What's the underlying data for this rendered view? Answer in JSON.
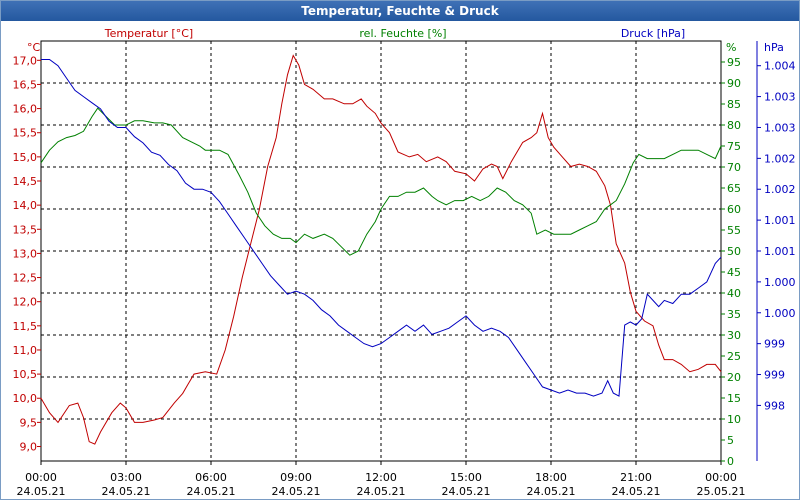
{
  "chart_data": {
    "type": "line",
    "title": "Temperatur, Feuchte & Druck",
    "x_tick_times": [
      "00:00",
      "03:00",
      "06:00",
      "09:00",
      "12:00",
      "15:00",
      "18:00",
      "21:00",
      "00:00"
    ],
    "x_tick_dates": [
      "24.05.21",
      "24.05.21",
      "24.05.21",
      "24.05.21",
      "24.05.21",
      "24.05.21",
      "24.05.21",
      "24.05.21",
      "25.05.21"
    ],
    "x_range_hours": [
      0,
      24
    ],
    "axes": {
      "temperature": {
        "unit_label": "°C",
        "label": "Temperatur [°C]",
        "range": [
          8.7,
          17.4
        ],
        "ticks": [
          "17,0",
          "16,5",
          "16,0",
          "15,5",
          "15,0",
          "14,5",
          "14,0",
          "13,5",
          "13,0",
          "12,5",
          "12,0",
          "11,5",
          "11,0",
          "10,5",
          "10,0",
          "9,5",
          "9,0"
        ],
        "tick_values": [
          17.0,
          16.5,
          16.0,
          15.5,
          15.0,
          14.5,
          14.0,
          13.5,
          13.0,
          12.5,
          12.0,
          11.5,
          11.0,
          10.5,
          10.0,
          9.5,
          9.0
        ],
        "color": "#c00000"
      },
      "humidity": {
        "unit_label": "%",
        "label": "rel. Feuchte [%]",
        "range": [
          0,
          100
        ],
        "ticks": [
          "95",
          "90",
          "85",
          "80",
          "75",
          "70",
          "65",
          "60",
          "55",
          "50",
          "45",
          "40",
          "35",
          "30",
          "25",
          "20",
          "15",
          "10",
          "5",
          "0"
        ],
        "tick_values": [
          95,
          90,
          85,
          80,
          75,
          70,
          65,
          60,
          55,
          50,
          45,
          40,
          35,
          30,
          25,
          20,
          15,
          10,
          5,
          0
        ],
        "color": "#008000"
      },
      "pressure": {
        "unit_label": "hPa",
        "label": "Druck [hPa]",
        "range": [
          997.6,
          1004.4
        ],
        "ticks": [
          "1.004",
          "1.003",
          "1.003",
          "1.002",
          "1.002",
          "1.001",
          "1.001",
          "1.000",
          "1.000",
          "999",
          "999",
          "998"
        ],
        "tick_values": [
          1004.0,
          1003.5,
          1003.0,
          1002.5,
          1002.0,
          1001.5,
          1001.0,
          1000.5,
          1000.0,
          999.5,
          999.0,
          998.5
        ],
        "color": "#0000c0"
      }
    },
    "series": [
      {
        "name": "Temperatur [°C]",
        "axis": "temperature",
        "color": "#c00000",
        "points": [
          [
            0.0,
            10.0
          ],
          [
            0.3,
            9.7
          ],
          [
            0.6,
            9.5
          ],
          [
            1.0,
            9.85
          ],
          [
            1.3,
            9.9
          ],
          [
            1.5,
            9.6
          ],
          [
            1.7,
            9.1
          ],
          [
            1.9,
            9.05
          ],
          [
            2.1,
            9.3
          ],
          [
            2.5,
            9.7
          ],
          [
            2.8,
            9.9
          ],
          [
            3.0,
            9.8
          ],
          [
            3.3,
            9.5
          ],
          [
            3.6,
            9.5
          ],
          [
            4.0,
            9.55
          ],
          [
            4.3,
            9.6
          ],
          [
            4.7,
            9.9
          ],
          [
            5.0,
            10.1
          ],
          [
            5.2,
            10.3
          ],
          [
            5.4,
            10.5
          ],
          [
            5.8,
            10.55
          ],
          [
            6.2,
            10.5
          ],
          [
            6.5,
            11.0
          ],
          [
            6.8,
            11.7
          ],
          [
            7.1,
            12.5
          ],
          [
            7.4,
            13.2
          ],
          [
            7.7,
            13.9
          ],
          [
            8.0,
            14.8
          ],
          [
            8.3,
            15.4
          ],
          [
            8.5,
            16.1
          ],
          [
            8.7,
            16.7
          ],
          [
            8.9,
            17.1
          ],
          [
            9.1,
            16.9
          ],
          [
            9.3,
            16.5
          ],
          [
            9.6,
            16.4
          ],
          [
            10.0,
            16.2
          ],
          [
            10.3,
            16.2
          ],
          [
            10.7,
            16.1
          ],
          [
            11.0,
            16.1
          ],
          [
            11.3,
            16.2
          ],
          [
            11.5,
            16.05
          ],
          [
            11.8,
            15.9
          ],
          [
            12.0,
            15.7
          ],
          [
            12.3,
            15.5
          ],
          [
            12.6,
            15.1
          ],
          [
            13.0,
            15.0
          ],
          [
            13.3,
            15.05
          ],
          [
            13.6,
            14.9
          ],
          [
            14.0,
            15.0
          ],
          [
            14.3,
            14.9
          ],
          [
            14.6,
            14.7
          ],
          [
            15.0,
            14.65
          ],
          [
            15.3,
            14.5
          ],
          [
            15.6,
            14.75
          ],
          [
            15.9,
            14.85
          ],
          [
            16.1,
            14.8
          ],
          [
            16.3,
            14.55
          ],
          [
            16.6,
            14.9
          ],
          [
            17.0,
            15.3
          ],
          [
            17.3,
            15.4
          ],
          [
            17.5,
            15.5
          ],
          [
            17.7,
            15.9
          ],
          [
            17.9,
            15.4
          ],
          [
            18.1,
            15.2
          ],
          [
            18.4,
            15.0
          ],
          [
            18.7,
            14.8
          ],
          [
            19.0,
            14.85
          ],
          [
            19.3,
            14.8
          ],
          [
            19.6,
            14.7
          ],
          [
            19.9,
            14.4
          ],
          [
            20.1,
            14.0
          ],
          [
            20.3,
            13.2
          ],
          [
            20.6,
            12.8
          ],
          [
            20.8,
            12.2
          ],
          [
            21.0,
            11.8
          ],
          [
            21.3,
            11.6
          ],
          [
            21.6,
            11.5
          ],
          [
            21.8,
            11.1
          ],
          [
            22.0,
            10.8
          ],
          [
            22.3,
            10.8
          ],
          [
            22.6,
            10.7
          ],
          [
            22.9,
            10.55
          ],
          [
            23.2,
            10.6
          ],
          [
            23.5,
            10.7
          ],
          [
            23.8,
            10.7
          ],
          [
            24.0,
            10.55
          ]
        ]
      },
      {
        "name": "rel. Feuchte [%]",
        "axis": "humidity",
        "color": "#008000",
        "points": [
          [
            0.0,
            71
          ],
          [
            0.3,
            74
          ],
          [
            0.6,
            76
          ],
          [
            0.9,
            77
          ],
          [
            1.2,
            77.5
          ],
          [
            1.5,
            78.5
          ],
          [
            1.8,
            82
          ],
          [
            2.0,
            84
          ],
          [
            2.3,
            82
          ],
          [
            2.6,
            80
          ],
          [
            3.0,
            80
          ],
          [
            3.3,
            81
          ],
          [
            3.6,
            81
          ],
          [
            4.0,
            80.5
          ],
          [
            4.3,
            80.5
          ],
          [
            4.6,
            80
          ],
          [
            5.0,
            77
          ],
          [
            5.3,
            76
          ],
          [
            5.6,
            75
          ],
          [
            5.8,
            74
          ],
          [
            6.0,
            74
          ],
          [
            6.3,
            74
          ],
          [
            6.6,
            73
          ],
          [
            7.0,
            68
          ],
          [
            7.3,
            64
          ],
          [
            7.6,
            59
          ],
          [
            7.9,
            56
          ],
          [
            8.2,
            54
          ],
          [
            8.5,
            53
          ],
          [
            8.8,
            53
          ],
          [
            9.0,
            52
          ],
          [
            9.3,
            54
          ],
          [
            9.6,
            53
          ],
          [
            10.0,
            54
          ],
          [
            10.3,
            53
          ],
          [
            10.6,
            51
          ],
          [
            10.9,
            49
          ],
          [
            11.2,
            50
          ],
          [
            11.5,
            54
          ],
          [
            11.8,
            57
          ],
          [
            12.0,
            60
          ],
          [
            12.3,
            63
          ],
          [
            12.6,
            63
          ],
          [
            12.9,
            64
          ],
          [
            13.2,
            64
          ],
          [
            13.5,
            65
          ],
          [
            13.8,
            63
          ],
          [
            14.0,
            62
          ],
          [
            14.3,
            61
          ],
          [
            14.6,
            62
          ],
          [
            14.9,
            62
          ],
          [
            15.2,
            63
          ],
          [
            15.5,
            62
          ],
          [
            15.8,
            63
          ],
          [
            16.1,
            65
          ],
          [
            16.4,
            64
          ],
          [
            16.7,
            62
          ],
          [
            17.0,
            61
          ],
          [
            17.3,
            59
          ],
          [
            17.5,
            54
          ],
          [
            17.8,
            55
          ],
          [
            18.1,
            54
          ],
          [
            18.4,
            54
          ],
          [
            18.7,
            54
          ],
          [
            19.0,
            55
          ],
          [
            19.3,
            56
          ],
          [
            19.6,
            57
          ],
          [
            19.9,
            60
          ],
          [
            20.1,
            61
          ],
          [
            20.3,
            62
          ],
          [
            20.6,
            66
          ],
          [
            20.9,
            71
          ],
          [
            21.1,
            73
          ],
          [
            21.4,
            72
          ],
          [
            21.7,
            72
          ],
          [
            22.0,
            72
          ],
          [
            22.3,
            73
          ],
          [
            22.6,
            74
          ],
          [
            22.9,
            74
          ],
          [
            23.2,
            74
          ],
          [
            23.5,
            73
          ],
          [
            23.8,
            72
          ],
          [
            24.0,
            75
          ]
        ]
      },
      {
        "name": "Druck [hPa]",
        "axis": "pressure",
        "color": "#0000c0",
        "points": [
          [
            0.0,
            1004.1
          ],
          [
            0.3,
            1004.1
          ],
          [
            0.6,
            1004.0
          ],
          [
            0.9,
            1003.8
          ],
          [
            1.2,
            1003.6
          ],
          [
            1.5,
            1003.5
          ],
          [
            1.8,
            1003.4
          ],
          [
            2.1,
            1003.3
          ],
          [
            2.4,
            1003.1
          ],
          [
            2.7,
            1003.0
          ],
          [
            3.0,
            1003.0
          ],
          [
            3.3,
            1002.85
          ],
          [
            3.6,
            1002.75
          ],
          [
            3.9,
            1002.6
          ],
          [
            4.2,
            1002.55
          ],
          [
            4.5,
            1002.4
          ],
          [
            4.8,
            1002.3
          ],
          [
            5.1,
            1002.1
          ],
          [
            5.4,
            1002.0
          ],
          [
            5.7,
            1002.0
          ],
          [
            6.0,
            1001.95
          ],
          [
            6.3,
            1001.8
          ],
          [
            6.6,
            1001.6
          ],
          [
            6.9,
            1001.4
          ],
          [
            7.2,
            1001.2
          ],
          [
            7.5,
            1001.0
          ],
          [
            7.8,
            1000.8
          ],
          [
            8.1,
            1000.6
          ],
          [
            8.4,
            1000.45
          ],
          [
            8.7,
            1000.3
          ],
          [
            9.0,
            1000.35
          ],
          [
            9.3,
            1000.3
          ],
          [
            9.6,
            1000.2
          ],
          [
            9.9,
            1000.05
          ],
          [
            10.2,
            999.95
          ],
          [
            10.5,
            999.8
          ],
          [
            10.8,
            999.7
          ],
          [
            11.1,
            999.6
          ],
          [
            11.4,
            999.5
          ],
          [
            11.7,
            999.45
          ],
          [
            12.0,
            999.5
          ],
          [
            12.3,
            999.6
          ],
          [
            12.6,
            999.7
          ],
          [
            12.9,
            999.8
          ],
          [
            13.2,
            999.7
          ],
          [
            13.5,
            999.8
          ],
          [
            13.8,
            999.65
          ],
          [
            14.1,
            999.7
          ],
          [
            14.4,
            999.75
          ],
          [
            14.7,
            999.85
          ],
          [
            15.0,
            999.95
          ],
          [
            15.3,
            999.8
          ],
          [
            15.6,
            999.7
          ],
          [
            15.9,
            999.75
          ],
          [
            16.2,
            999.7
          ],
          [
            16.5,
            999.6
          ],
          [
            16.8,
            999.4
          ],
          [
            17.1,
            999.2
          ],
          [
            17.4,
            999.0
          ],
          [
            17.7,
            998.8
          ],
          [
            18.0,
            998.75
          ],
          [
            18.3,
            998.7
          ],
          [
            18.6,
            998.75
          ],
          [
            18.9,
            998.7
          ],
          [
            19.2,
            998.7
          ],
          [
            19.5,
            998.65
          ],
          [
            19.8,
            998.7
          ],
          [
            20.0,
            998.9
          ],
          [
            20.2,
            998.7
          ],
          [
            20.4,
            998.65
          ],
          [
            20.6,
            999.8
          ],
          [
            20.8,
            999.85
          ],
          [
            21.0,
            999.8
          ],
          [
            21.2,
            999.9
          ],
          [
            21.4,
            1000.3
          ],
          [
            21.6,
            1000.2
          ],
          [
            21.8,
            1000.1
          ],
          [
            22.0,
            1000.2
          ],
          [
            22.3,
            1000.15
          ],
          [
            22.6,
            1000.3
          ],
          [
            22.9,
            1000.3
          ],
          [
            23.2,
            1000.4
          ],
          [
            23.5,
            1000.5
          ],
          [
            23.8,
            1000.8
          ],
          [
            24.0,
            1000.9
          ]
        ]
      }
    ]
  }
}
